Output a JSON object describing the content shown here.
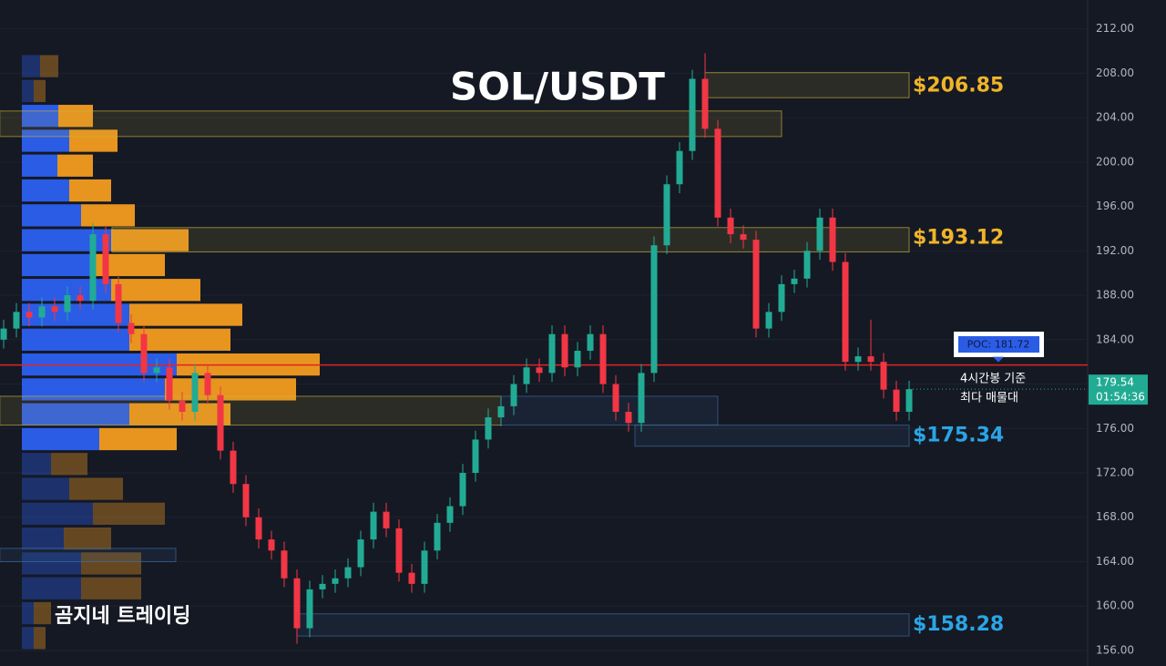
{
  "chart_data": {
    "type": "candlestick",
    "title": "SOL/USDT",
    "watermark": "곰지네 트레이딩",
    "ylim": [
      154.6,
      214.6
    ],
    "yticks": [
      {
        "value": 156,
        "label": "156.00"
      },
      {
        "value": 160,
        "label": "160.00"
      },
      {
        "value": 164,
        "label": "164.00"
      },
      {
        "value": 168,
        "label": "168.00"
      },
      {
        "value": 172,
        "label": "172.00"
      },
      {
        "value": 176,
        "label": "176.00"
      },
      {
        "value": 180,
        "label": "180.00"
      },
      {
        "value": 184,
        "label": "184.00"
      },
      {
        "value": 188,
        "label": "188.00"
      },
      {
        "value": 192,
        "label": "192.00"
      },
      {
        "value": 196,
        "label": "196.00"
      },
      {
        "value": 200,
        "label": "200.00"
      },
      {
        "value": 204,
        "label": "204.00"
      },
      {
        "value": 208,
        "label": "208.00"
      },
      {
        "value": 212,
        "label": "212.00"
      }
    ],
    "grid": true,
    "up_color": "#22ab94",
    "down_color": "#f23645",
    "open": [
      184,
      185,
      186.5,
      186,
      187,
      186.5,
      188,
      187.5,
      193.5,
      189,
      185.5,
      184.5,
      181,
      181.5,
      178.5,
      177.5,
      181,
      179,
      174,
      171,
      168,
      166,
      165,
      162.5,
      158,
      161.5,
      162,
      162.5,
      163.5,
      166,
      168.5,
      167,
      163,
      162,
      165,
      167.5,
      169,
      172,
      175,
      177,
      178,
      180,
      181.5,
      181,
      184.5,
      181.5,
      183,
      184.5,
      180,
      177.5,
      176.5,
      181,
      192.5,
      198,
      201,
      207.5,
      203,
      195,
      193.5,
      193,
      185,
      186.5,
      189,
      189.5,
      192,
      195,
      191,
      182,
      182.5,
      182,
      179.5,
      177.5
    ],
    "high": [
      185.8,
      187.3,
      187.3,
      187.8,
      187.8,
      188.8,
      188.8,
      194.5,
      194.3,
      189.8,
      186.3,
      185.3,
      182.3,
      182.3,
      179.3,
      181.8,
      181.8,
      179.8,
      174.8,
      171.8,
      168.8,
      166.8,
      165.8,
      163.3,
      162.3,
      162.8,
      163.3,
      164.3,
      166.8,
      169.3,
      169.3,
      167.8,
      163.8,
      165.8,
      168.3,
      169.8,
      172.8,
      175.8,
      177.8,
      178.8,
      180.8,
      182.3,
      182.3,
      185.3,
      185.3,
      183.8,
      185.3,
      185.3,
      180.8,
      178.3,
      181.8,
      193.3,
      198.8,
      201.8,
      208.3,
      209.8,
      203.8,
      195.8,
      194.3,
      193.8,
      187.3,
      189.8,
      190.3,
      192.8,
      195.8,
      195.8,
      191.8,
      183.3,
      185.8,
      182.8,
      180.3,
      180.3
    ],
    "low": [
      183.2,
      184.2,
      185.2,
      185.2,
      185.7,
      185.7,
      186.7,
      186.7,
      188.2,
      184.7,
      183.7,
      180.2,
      180.2,
      177.7,
      176.7,
      176.7,
      178.2,
      173.2,
      170.2,
      167.2,
      165.2,
      164.2,
      161.7,
      156.6,
      157.2,
      160.7,
      161.2,
      161.7,
      162.7,
      165.2,
      166.2,
      162.2,
      161.2,
      161.2,
      164.2,
      166.7,
      168.2,
      171.2,
      174.2,
      176.2,
      177.2,
      179.2,
      180.2,
      180.2,
      180.7,
      180.7,
      182.2,
      179.2,
      176.7,
      175.7,
      175.7,
      180.2,
      191.7,
      197.2,
      200.2,
      202.2,
      194.2,
      192.7,
      192.2,
      184.2,
      184.2,
      185.7,
      188.2,
      188.7,
      191.2,
      190.2,
      181.2,
      181.2,
      181.2,
      178.7,
      176.7,
      176.7
    ],
    "close": [
      185,
      186.5,
      186,
      187,
      186.5,
      188,
      187.5,
      193.5,
      189,
      185.5,
      184.5,
      181,
      181.5,
      178.5,
      177.5,
      181,
      179,
      174,
      171,
      168,
      166,
      165,
      162.5,
      158,
      161.5,
      162,
      162.5,
      163.5,
      166,
      168.5,
      167,
      163,
      162,
      165,
      167.5,
      169,
      172,
      175,
      177,
      178,
      180,
      181.5,
      181,
      184.5,
      181.5,
      183,
      184.5,
      180,
      177.5,
      176.5,
      181,
      192.5,
      198,
      201,
      207.5,
      203,
      195,
      193.5,
      193,
      185,
      186.5,
      189,
      189.5,
      192,
      195,
      191,
      182,
      182.5,
      182,
      179.5,
      177.5,
      179.54
    ],
    "zones": [
      {
        "lo": 202.3,
        "hi": 204.6,
        "from": -0.3,
        "to": 61,
        "color": "#c9b23a"
      },
      {
        "lo": 205.8,
        "hi": 208.06,
        "from": 55,
        "to": 71,
        "color": "#c9b23a",
        "price": 206.85,
        "label": "$206.85"
      },
      {
        "lo": 191.9,
        "hi": 194.1,
        "from": 8.5,
        "to": 71,
        "color": "#c9b23a",
        "price": 193.12,
        "label": "$193.12"
      },
      {
        "lo": 176.3,
        "hi": 178.9,
        "from": -0.3,
        "to": 39,
        "color": "#c9b23a"
      },
      {
        "lo": 176.3,
        "hi": 178.9,
        "from": 39,
        "to": 56,
        "color": "#3a6ea5"
      },
      {
        "lo": 174.4,
        "hi": 176.3,
        "from": 49.5,
        "to": 71,
        "color": "#3a6ea5",
        "price": 175.34,
        "label": "$175.34"
      },
      {
        "lo": 157.3,
        "hi": 159.3,
        "from": 23,
        "to": 71,
        "color": "#3a6ea5",
        "price": 158.28,
        "label": "$158.28"
      },
      {
        "lo": 164.0,
        "hi": 165.2,
        "from": -0.3,
        "to": 13.5,
        "color": "#3a6ea5"
      }
    ],
    "poc": 181.72,
    "poc_label": "POC: 181.72",
    "poc_color": "#e02424",
    "annotation": [
      "4시간봉 기준",
      "최다 매물대"
    ],
    "last_price": 179.54,
    "countdown": "01:54:36",
    "profile": {
      "bins": [
        156.0,
        158.24,
        160.48,
        162.72,
        164.96,
        167.2,
        169.44,
        171.68,
        173.92,
        176.16,
        178.4,
        180.64,
        182.88,
        185.12,
        187.36,
        189.6,
        191.84,
        194.08,
        196.32,
        198.56,
        200.8,
        203.04,
        205.28,
        207.52,
        209.76
      ],
      "up": [
        13,
        13,
        65,
        65,
        46,
        78,
        52,
        32,
        85,
        118,
        157,
        170,
        118,
        118,
        98,
        78,
        98,
        65,
        52,
        39,
        52,
        40,
        13,
        20
      ],
      "down": [
        13,
        19,
        66,
        66,
        52,
        79,
        59,
        40,
        85,
        111,
        144,
        157,
        111,
        124,
        98,
        79,
        85,
        59,
        46,
        39,
        53,
        38,
        13,
        20
      ],
      "up_color": "#2b5ce6",
      "down_color": "#e8951f",
      "value_area": [
        173.92,
        205.28
      ]
    }
  }
}
